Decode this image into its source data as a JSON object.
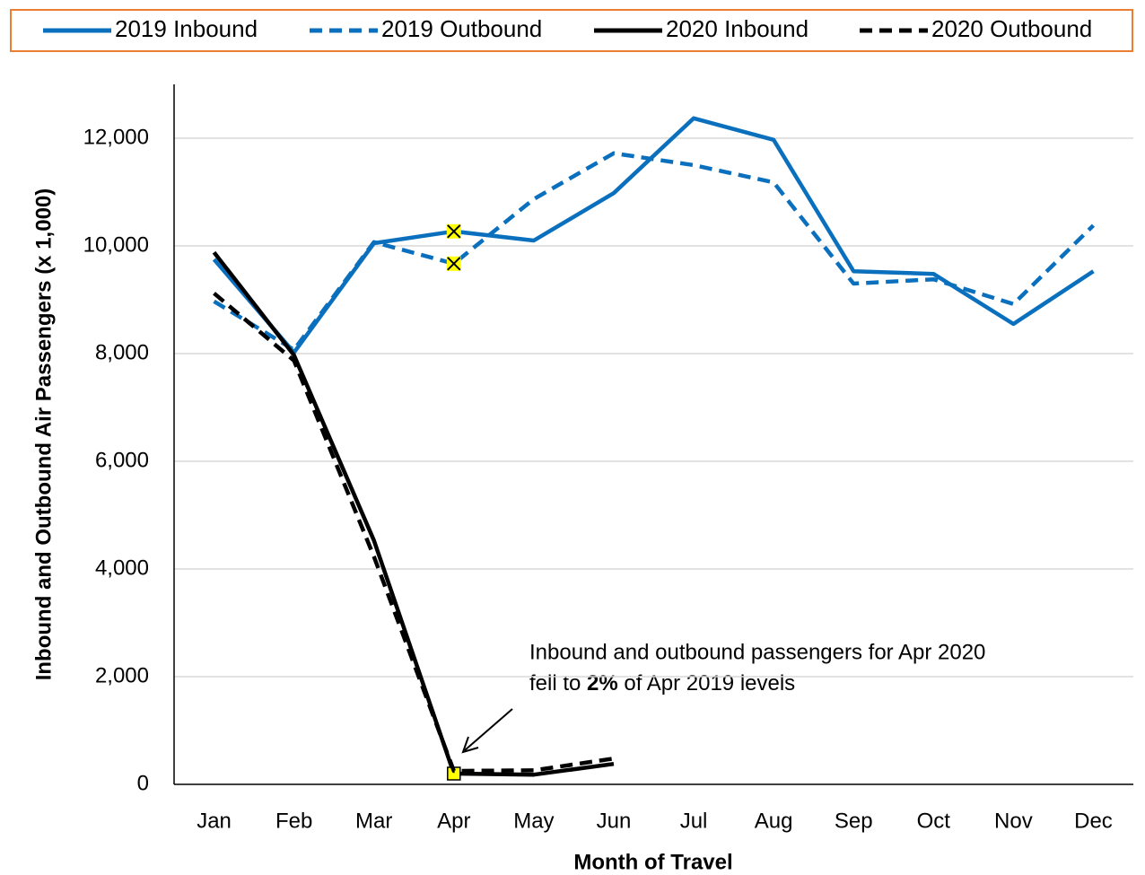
{
  "chart_data": {
    "type": "line",
    "legend_position": "top",
    "x_label": "Month of Travel",
    "y_label": "Inbound and Outbound Air Passengers (x 1,000)",
    "categories": [
      "Jan",
      "Feb",
      "Mar",
      "Apr",
      "May",
      "Jun",
      "Jul",
      "Aug",
      "Sep",
      "Oct",
      "Nov",
      "Dec"
    ],
    "ylim": [
      0,
      13000
    ],
    "yticks": [
      0,
      {
        "value": 2000,
        "label": "2,000"
      },
      {
        "value": 4000,
        "label": "4,000"
      },
      {
        "value": 6000,
        "label": "6,000"
      },
      {
        "value": 8000,
        "label": "8,000"
      },
      {
        "value": 10000,
        "label": "10,000"
      },
      {
        "value": 12000,
        "label": "12,000"
      }
    ],
    "grid": true,
    "series": [
      {
        "name": "2019 Inbound",
        "color": "#0a70be",
        "dashed": false,
        "marker": "x",
        "values": [
          9750,
          8020,
          10050,
          10270,
          10100,
          10980,
          12370,
          11970,
          9530,
          9480,
          8550,
          9530
        ]
      },
      {
        "name": "2019 Outbound",
        "color": "#0a70be",
        "dashed": true,
        "marker": "x",
        "values": [
          8970,
          8070,
          10070,
          9670,
          10870,
          11720,
          11500,
          11180,
          9300,
          9380,
          8920,
          10380
        ]
      },
      {
        "name": "2020 Inbound",
        "color": "#000000",
        "dashed": false,
        "marker": "square",
        "values": [
          9880,
          7970,
          4530,
          200,
          180,
          380,
          null,
          null,
          null,
          null,
          null,
          null
        ]
      },
      {
        "name": "2020 Outbound",
        "color": "#000000",
        "dashed": true,
        "values": [
          9120,
          7870,
          4230,
          250,
          260,
          480,
          null,
          null,
          null,
          null,
          null,
          null
        ]
      }
    ],
    "annotation": {
      "line1": "Inbound and outbound passengers for Apr 2020",
      "line2_start": "fell to ",
      "line2_bold": "2%",
      "line2_end": " of Apr 2019 levels"
    }
  }
}
